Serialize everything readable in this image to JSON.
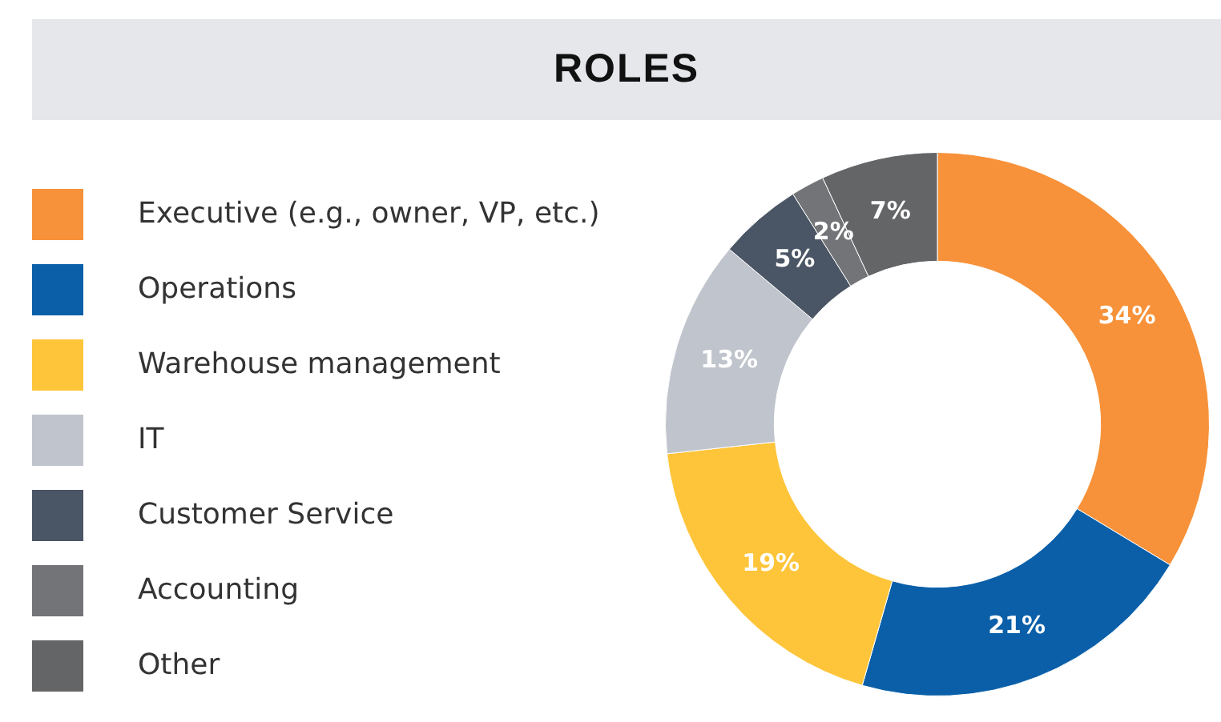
{
  "chart_data": {
    "type": "donut",
    "title": "ROLES",
    "categories": [
      "Executive (e.g., owner, VP, etc.)",
      "Operations",
      "Warehouse management",
      "IT",
      "Customer Service",
      "Accounting",
      "Other"
    ],
    "values": [
      34,
      21,
      19,
      13,
      5,
      2,
      7
    ],
    "value_labels": [
      "34%",
      "21%",
      "19%",
      "13%",
      "5%",
      "2%",
      "7%"
    ],
    "colors": [
      "#f7923a",
      "#0a5fa8",
      "#fec53a",
      "#c0c4cc",
      "#4a5565",
      "#737477",
      "#646567"
    ],
    "legend": "left"
  }
}
